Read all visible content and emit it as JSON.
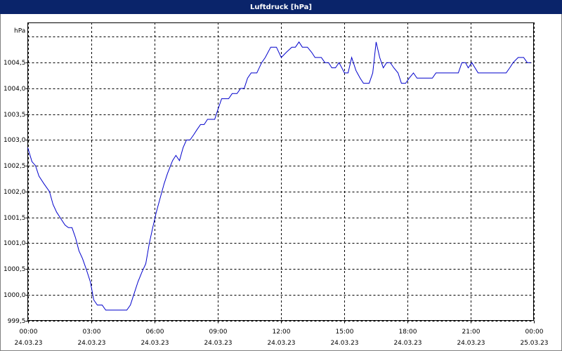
{
  "chart_data": {
    "type": "line",
    "title": "Luftdruck [hPa]",
    "y_label": "hPa",
    "xlim": [
      0,
      24
    ],
    "ylim": [
      999.5,
      1005
    ],
    "xticks": [
      {
        "value": 0,
        "label": "00:00"
      },
      {
        "value": 3,
        "label": "03:00"
      },
      {
        "value": 6,
        "label": "06:00"
      },
      {
        "value": 9,
        "label": "09:00"
      },
      {
        "value": 12,
        "label": "12:00"
      },
      {
        "value": 15,
        "label": "15:00"
      },
      {
        "value": 18,
        "label": "18:00"
      },
      {
        "value": 21,
        "label": "21:00"
      },
      {
        "value": 24,
        "label": "00:00"
      }
    ],
    "xtick_dates": [
      "24.03.23",
      "24.03.23",
      "24.03.23",
      "24.03.23",
      "24.03.23",
      "24.03.23",
      "24.03.23",
      "24.03.23",
      "25.03.23"
    ],
    "yticks": [
      {
        "value": 999.5,
        "label": "999,5"
      },
      {
        "value": 1000,
        "label": "1000,0"
      },
      {
        "value": 1000.5,
        "label": "1000,5"
      },
      {
        "value": 1001,
        "label": "1001,0"
      },
      {
        "value": 1001.5,
        "label": "1001,5"
      },
      {
        "value": 1002,
        "label": "1002,0"
      },
      {
        "value": 1002.5,
        "label": "1002,5"
      },
      {
        "value": 1003,
        "label": "1003,0"
      },
      {
        "value": 1003.5,
        "label": "1003,5"
      },
      {
        "value": 1004,
        "label": "1004,0"
      },
      {
        "value": 1004.5,
        "label": "1004,5"
      }
    ],
    "grid": true,
    "series": [
      {
        "color": "#0000cc",
        "x": [
          0,
          0.2,
          0.37,
          0.53,
          0.77,
          1.03,
          1.2,
          1.37,
          1.53,
          1.77,
          1.93,
          2.1,
          2.27,
          2.43,
          2.6,
          2.77,
          2.97,
          3.13,
          3.3,
          3.53,
          3.7,
          4.7,
          4.87,
          5.03,
          5.23,
          5.43,
          5.6,
          5.77,
          5.93,
          6.1,
          6.3,
          6.47,
          6.63,
          6.87,
          7.03,
          7.2,
          7.37,
          7.53,
          7.7,
          7.87,
          8.03,
          8.2,
          8.37,
          8.53,
          8.87,
          9.03,
          9.2,
          9.53,
          9.7,
          9.93,
          10.1,
          10.27,
          10.43,
          10.6,
          10.87,
          11.1,
          11.27,
          11.53,
          11.8,
          12.03,
          12.27,
          12.53,
          12.7,
          12.87,
          13.03,
          13.27,
          13.47,
          13.63,
          13.93,
          14.1,
          14.27,
          14.43,
          14.6,
          14.77,
          15.03,
          15.2,
          15.37,
          15.57,
          15.77,
          15.93,
          16.2,
          16.37,
          16.53,
          16.7,
          16.87,
          17.03,
          17.2,
          17.37,
          17.57,
          17.73,
          17.93,
          18.1,
          18.3,
          18.47,
          19.2,
          19.37,
          20.43,
          20.6,
          20.77,
          20.9,
          21.07,
          21.37,
          22.7,
          22.87,
          23.03,
          23.27,
          23.53,
          23.7,
          23.87
        ],
        "values": [
          1002.85,
          1002.58,
          1002.5,
          1002.3,
          1002.15,
          1002.0,
          1001.75,
          1001.6,
          1001.5,
          1001.35,
          1001.3,
          1001.3,
          1001.1,
          1000.85,
          1000.7,
          1000.5,
          1000.25,
          999.9,
          999.8,
          999.8,
          999.7,
          999.7,
          999.8,
          1000.0,
          1000.25,
          1000.45,
          1000.6,
          1001.0,
          1001.3,
          1001.6,
          1001.9,
          1002.15,
          1002.35,
          1002.6,
          1002.7,
          1002.6,
          1002.85,
          1003.0,
          1003.0,
          1003.1,
          1003.2,
          1003.3,
          1003.3,
          1003.4,
          1003.4,
          1003.6,
          1003.8,
          1003.8,
          1003.9,
          1003.9,
          1004.0,
          1004.0,
          1004.2,
          1004.3,
          1004.3,
          1004.5,
          1004.6,
          1004.8,
          1004.8,
          1004.6,
          1004.7,
          1004.8,
          1004.8,
          1004.9,
          1004.8,
          1004.8,
          1004.7,
          1004.6,
          1004.6,
          1004.5,
          1004.5,
          1004.4,
          1004.4,
          1004.5,
          1004.3,
          1004.3,
          1004.6,
          1004.35,
          1004.2,
          1004.1,
          1004.1,
          1004.3,
          1004.9,
          1004.6,
          1004.4,
          1004.5,
          1004.5,
          1004.4,
          1004.3,
          1004.1,
          1004.1,
          1004.2,
          1004.3,
          1004.2,
          1004.2,
          1004.3,
          1004.3,
          1004.5,
          1004.5,
          1004.4,
          1004.5,
          1004.3,
          1004.3,
          1004.4,
          1004.5,
          1004.6,
          1004.6,
          1004.5,
          1004.5
        ]
      }
    ]
  }
}
